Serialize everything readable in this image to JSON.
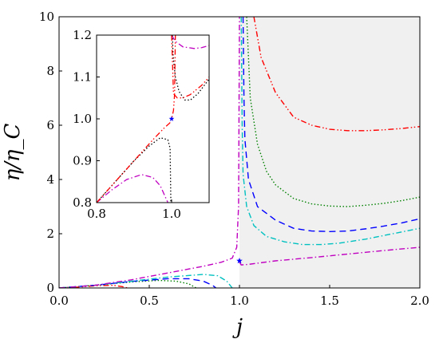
{
  "chart_data": [
    {
      "id": "main",
      "type": "line",
      "xlabel": "j",
      "ylabel": "η/η_C",
      "xlim": [
        0.0,
        2.0
      ],
      "ylim": [
        0,
        10
      ],
      "xticks": [
        "0.0",
        "0.5",
        "1.0",
        "1.5",
        "2.0"
      ],
      "yticks": [
        "0",
        "2",
        "4",
        "6",
        "8",
        "10"
      ],
      "grid": false,
      "shaded_region": {
        "x_from": 1.0,
        "x_to": 2.0,
        "color": "#f0f0f0"
      },
      "marker": {
        "x": 1.0,
        "y": 1.0,
        "shape": "star",
        "color": "#0000ff"
      },
      "series": [
        {
          "style": "dashdotdot",
          "color": "#ff0000",
          "segments": [
            [
              [
                0,
                0
              ],
              [
                0.1,
                0.03
              ],
              [
                0.2,
                0.08
              ],
              [
                0.3,
                0.1
              ],
              [
                0.35,
                0.05
              ],
              [
                0.38,
                0
              ]
            ],
            [
              [
                1.08,
                10
              ],
              [
                1.12,
                8.5
              ],
              [
                1.2,
                7.2
              ],
              [
                1.3,
                6.3
              ],
              [
                1.4,
                6.0
              ],
              [
                1.5,
                5.85
              ],
              [
                1.6,
                5.8
              ],
              [
                1.7,
                5.8
              ],
              [
                1.8,
                5.83
              ],
              [
                1.9,
                5.88
              ],
              [
                2.0,
                5.95
              ]
            ]
          ]
        },
        {
          "style": "dotted",
          "color": "#008000",
          "segments": [
            [
              [
                0,
                0
              ],
              [
                0.2,
                0.1
              ],
              [
                0.4,
                0.22
              ],
              [
                0.55,
                0.28
              ],
              [
                0.65,
                0.25
              ],
              [
                0.72,
                0.15
              ],
              [
                0.76,
                0
              ]
            ],
            [
              [
                1.04,
                10
              ],
              [
                1.06,
                7
              ],
              [
                1.1,
                5.3
              ],
              [
                1.15,
                4.3
              ],
              [
                1.2,
                3.8
              ],
              [
                1.3,
                3.3
              ],
              [
                1.4,
                3.1
              ],
              [
                1.5,
                3.02
              ],
              [
                1.6,
                3.0
              ],
              [
                1.7,
                3.05
              ],
              [
                1.8,
                3.12
              ],
              [
                1.9,
                3.22
              ],
              [
                2.0,
                3.35
              ]
            ]
          ]
        },
        {
          "style": "dashed",
          "color": "#0000ff",
          "segments": [
            [
              [
                0,
                0
              ],
              [
                0.2,
                0.1
              ],
              [
                0.4,
                0.24
              ],
              [
                0.6,
                0.34
              ],
              [
                0.72,
                0.34
              ],
              [
                0.8,
                0.25
              ],
              [
                0.85,
                0.1
              ],
              [
                0.87,
                0
              ]
            ],
            [
              [
                1.02,
                10
              ],
              [
                1.025,
                7
              ],
              [
                1.03,
                5.5
              ],
              [
                1.05,
                4
              ],
              [
                1.1,
                3.0
              ],
              [
                1.2,
                2.5
              ],
              [
                1.3,
                2.2
              ],
              [
                1.4,
                2.1
              ],
              [
                1.5,
                2.08
              ],
              [
                1.6,
                2.1
              ],
              [
                1.7,
                2.18
              ],
              [
                1.8,
                2.28
              ],
              [
                1.9,
                2.4
              ],
              [
                2.0,
                2.55
              ]
            ]
          ]
        },
        {
          "style": "dashdot",
          "color": "#00c0c0",
          "segments": [
            [
              [
                0,
                0
              ],
              [
                0.2,
                0.1
              ],
              [
                0.4,
                0.25
              ],
              [
                0.6,
                0.4
              ],
              [
                0.8,
                0.5
              ],
              [
                0.88,
                0.45
              ],
              [
                0.93,
                0.25
              ],
              [
                0.96,
                0
              ]
            ],
            [
              [
                1.01,
                10
              ],
              [
                1.015,
                6
              ],
              [
                1.02,
                4.2
              ],
              [
                1.04,
                3.0
              ],
              [
                1.08,
                2.3
              ],
              [
                1.15,
                1.9
              ],
              [
                1.25,
                1.7
              ],
              [
                1.35,
                1.6
              ],
              [
                1.45,
                1.6
              ],
              [
                1.55,
                1.65
              ],
              [
                1.7,
                1.8
              ],
              [
                1.85,
                2.0
              ],
              [
                2.0,
                2.2
              ]
            ]
          ]
        },
        {
          "style": "dashdot",
          "color": "#c000c0",
          "segments": [
            [
              [
                0,
                0
              ],
              [
                0.2,
                0.1
              ],
              [
                0.4,
                0.3
              ],
              [
                0.6,
                0.55
              ],
              [
                0.8,
                0.8
              ],
              [
                0.9,
                0.95
              ],
              [
                0.96,
                1.1
              ],
              [
                0.985,
                1.5
              ],
              [
                0.995,
                3
              ],
              [
                1.0,
                10
              ]
            ],
            [
              [
                1.0,
                0.95
              ],
              [
                1.01,
                0.85
              ],
              [
                1.05,
                0.87
              ],
              [
                1.2,
                1.0
              ],
              [
                1.4,
                1.12
              ],
              [
                1.6,
                1.25
              ],
              [
                1.8,
                1.38
              ],
              [
                2.0,
                1.5
              ]
            ]
          ]
        }
      ]
    },
    {
      "id": "inset",
      "type": "line",
      "xlim": [
        0.8,
        1.1
      ],
      "ylim": [
        0.8,
        1.2
      ],
      "xticks": [
        "0.8",
        "1.0"
      ],
      "yticks": [
        "0.8",
        "0.9",
        "1.0",
        "1.1",
        "1.2"
      ],
      "marker": {
        "x": 1.0,
        "y": 1.0,
        "shape": "star",
        "color": "#0000ff"
      },
      "series": [
        {
          "style": "dashdot",
          "color": "#c000c0",
          "segments": [
            [
              [
                0.8,
                0.8
              ],
              [
                0.84,
                0.83
              ],
              [
                0.88,
                0.855
              ],
              [
                0.92,
                0.867
              ],
              [
                0.95,
                0.86
              ],
              [
                0.97,
                0.84
              ],
              [
                0.985,
                0.81
              ],
              [
                0.99,
                0.8
              ]
            ],
            [
              [
                1.0,
                1.2
              ],
              [
                1.01,
                1.185
              ],
              [
                1.03,
                1.172
              ],
              [
                1.06,
                1.168
              ],
              [
                1.08,
                1.17
              ],
              [
                1.1,
                1.175
              ]
            ]
          ]
        },
        {
          "style": "dotted",
          "color": "#000000",
          "segments": [
            [
              [
                0.8,
                0.8
              ],
              [
                0.85,
                0.85
              ],
              [
                0.9,
                0.9
              ],
              [
                0.94,
                0.935
              ],
              [
                0.97,
                0.955
              ],
              [
                0.99,
                0.95
              ],
              [
                0.996,
                0.93
              ],
              [
                0.998,
                0.8
              ]
            ],
            [
              [
                1.002,
                1.2
              ],
              [
                1.004,
                1.15
              ],
              [
                1.01,
                1.1
              ],
              [
                1.02,
                1.065
              ],
              [
                1.035,
                1.045
              ],
              [
                1.05,
                1.045
              ],
              [
                1.07,
                1.06
              ],
              [
                1.1,
                1.095
              ]
            ]
          ]
        },
        {
          "style": "dashdotdot",
          "color": "#ff0000",
          "segments": [
            [
              [
                0.8,
                0.8
              ],
              [
                0.85,
                0.85
              ],
              [
                0.9,
                0.9
              ],
              [
                0.95,
                0.95
              ],
              [
                0.98,
                0.978
              ],
              [
                0.995,
                0.99
              ],
              [
                1.0,
                1.0
              ],
              [
                1.005,
                1.02
              ],
              [
                1.008,
                1.06
              ],
              [
                1.01,
                1.2
              ]
            ],
            [
              [
                1.0,
                1.2
              ],
              [
                1.005,
                1.06
              ],
              [
                1.015,
                1.05
              ],
              [
                1.03,
                1.05
              ],
              [
                1.05,
                1.058
              ],
              [
                1.08,
                1.08
              ],
              [
                1.1,
                1.1
              ]
            ]
          ]
        }
      ]
    }
  ]
}
